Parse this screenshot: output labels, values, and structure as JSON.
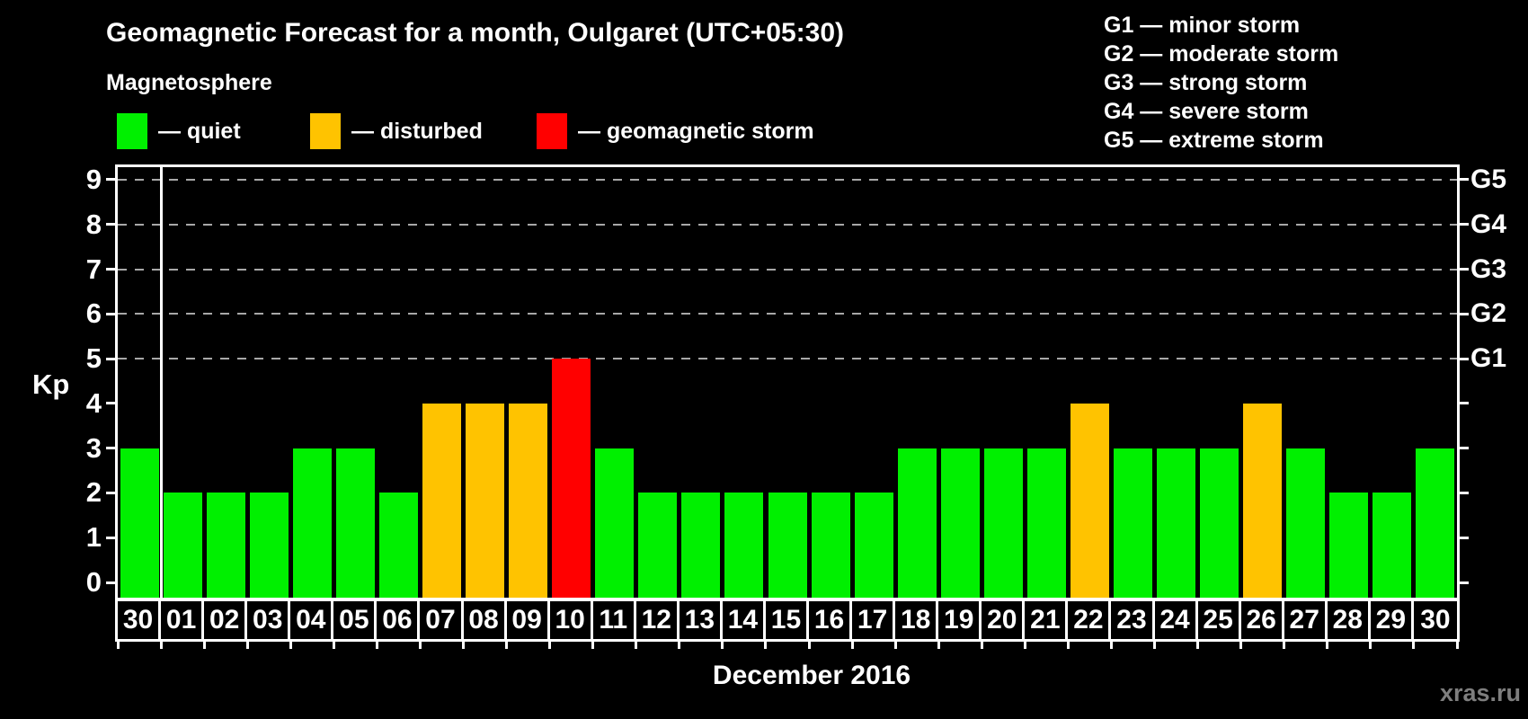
{
  "chart_data": {
    "type": "bar",
    "title": "Geomagnetic Forecast for a month, Oulgaret (UTC+05:30)",
    "subtitle": "Magnetosphere",
    "ylabel": "Kp",
    "xlabel": "December 2016",
    "categories": [
      "30",
      "01",
      "02",
      "03",
      "04",
      "05",
      "06",
      "07",
      "08",
      "09",
      "10",
      "11",
      "12",
      "13",
      "14",
      "15",
      "16",
      "17",
      "18",
      "19",
      "20",
      "21",
      "22",
      "23",
      "24",
      "25",
      "26",
      "27",
      "28",
      "29",
      "30"
    ],
    "values": [
      3,
      2,
      2,
      2,
      3,
      3,
      2,
      4,
      4,
      4,
      5,
      3,
      2,
      2,
      2,
      2,
      2,
      2,
      3,
      3,
      3,
      3,
      4,
      3,
      3,
      3,
      4,
      3,
      2,
      2,
      3
    ],
    "statuses": [
      "quiet",
      "quiet",
      "quiet",
      "quiet",
      "quiet",
      "quiet",
      "quiet",
      "disturbed",
      "disturbed",
      "disturbed",
      "storm",
      "quiet",
      "quiet",
      "quiet",
      "quiet",
      "quiet",
      "quiet",
      "quiet",
      "quiet",
      "quiet",
      "quiet",
      "quiet",
      "disturbed",
      "quiet",
      "quiet",
      "quiet",
      "disturbed",
      "quiet",
      "quiet",
      "quiet",
      "quiet"
    ],
    "ylim": [
      0,
      9.6
    ],
    "yticks": [
      0,
      1,
      2,
      3,
      4,
      5,
      6,
      7,
      8,
      9
    ],
    "gridline_levels": [
      5,
      6,
      7,
      8,
      9
    ],
    "right_axis_labels": [
      {
        "kp": 5,
        "label": "G1"
      },
      {
        "kp": 6,
        "label": "G2"
      },
      {
        "kp": 7,
        "label": "G3"
      },
      {
        "kp": 8,
        "label": "G4"
      },
      {
        "kp": 9,
        "label": "G5"
      }
    ],
    "separator_after_index": 0,
    "colors": {
      "quiet": "#00f000",
      "disturbed": "#ffc300",
      "storm": "#ff0000"
    }
  },
  "legend": {
    "items": [
      {
        "status": "quiet",
        "label": "— quiet"
      },
      {
        "status": "disturbed",
        "label": "— disturbed"
      },
      {
        "status": "storm",
        "label": "— geomagnetic storm"
      }
    ]
  },
  "g_legend": [
    "G1 — minor storm",
    "G2 — moderate storm",
    "G3 — strong storm",
    "G4 — severe storm",
    "G5 — extreme storm"
  ],
  "watermark": "xras.ru"
}
